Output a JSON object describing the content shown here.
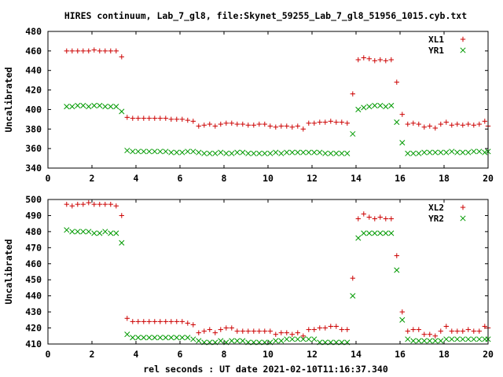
{
  "chart_data": {
    "title": "HIRES continuum, Lab_7_gl8, file:Skynet_59255_Lab_7_gl8_51956_1015.cyb.txt",
    "xlabel": "rel seconds : UT date 2021-02-10T11:16:37.340",
    "colors": {
      "XL": "#cc0000",
      "YR": "#009900"
    },
    "panels": [
      {
        "type": "scatter",
        "ylabel": "Uncalibrated",
        "xlim": [
          0,
          20
        ],
        "ylim": [
          340,
          480
        ],
        "xticks": [
          "0",
          "2",
          "4",
          "6",
          "8",
          "10",
          "12",
          "14",
          "16",
          "18",
          "20"
        ],
        "yticks": [
          "340",
          "360",
          "380",
          "400",
          "420",
          "440",
          "460",
          "480"
        ],
        "legend_position": "top-right",
        "x": [
          0.85,
          1.1,
          1.35,
          1.6,
          1.85,
          2.1,
          2.35,
          2.6,
          2.85,
          3.1,
          3.35,
          3.6,
          3.85,
          4.1,
          4.35,
          4.6,
          4.85,
          5.1,
          5.35,
          5.6,
          5.85,
          6.1,
          6.35,
          6.6,
          6.85,
          7.1,
          7.35,
          7.6,
          7.85,
          8.1,
          8.35,
          8.6,
          8.85,
          9.1,
          9.35,
          9.6,
          9.85,
          10.1,
          10.35,
          10.6,
          10.85,
          11.1,
          11.35,
          11.6,
          11.85,
          12.1,
          12.35,
          12.6,
          12.85,
          13.1,
          13.35,
          13.6,
          13.85,
          14.1,
          14.35,
          14.6,
          14.85,
          15.1,
          15.35,
          15.6,
          15.85,
          16.1,
          16.35,
          16.6,
          16.85,
          17.1,
          17.35,
          17.6,
          17.85,
          18.1,
          18.35,
          18.6,
          18.85,
          19.1,
          19.35,
          19.6,
          19.85,
          20.0
        ],
        "series": [
          {
            "name": "XL1",
            "marker": "plus",
            "values": [
              460,
              460,
              460,
              460,
              460,
              461,
              460,
              460,
              460,
              460,
              454,
              392,
              391,
              391,
              391,
              391,
              391,
              391,
              391,
              390,
              390,
              390,
              389,
              388,
              383,
              384,
              385,
              383,
              385,
              386,
              386,
              385,
              385,
              384,
              384,
              385,
              385,
              383,
              382,
              383,
              383,
              382,
              383,
              380,
              386,
              386,
              387,
              387,
              388,
              387,
              387,
              386,
              416,
              451,
              453,
              452,
              450,
              451,
              450,
              451,
              428,
              395,
              385,
              386,
              385,
              382,
              383,
              381,
              385,
              387,
              384,
              385,
              384,
              385,
              384,
              385,
              388,
              383
            ]
          },
          {
            "name": "YR1",
            "marker": "cross",
            "values": [
              403,
              403,
              404,
              404,
              403,
              404,
              404,
              403,
              403,
              403,
              398,
              358,
              357,
              357,
              357,
              357,
              357,
              357,
              357,
              356,
              356,
              356,
              357,
              357,
              356,
              355,
              355,
              355,
              356,
              355,
              355,
              356,
              356,
              355,
              355,
              355,
              355,
              355,
              356,
              355,
              356,
              356,
              356,
              356,
              356,
              356,
              356,
              355,
              355,
              355,
              355,
              355,
              375,
              400,
              402,
              403,
              404,
              404,
              403,
              404,
              387,
              366,
              355,
              355,
              355,
              356,
              356,
              356,
              356,
              356,
              357,
              356,
              356,
              356,
              357,
              357,
              356,
              357
            ]
          }
        ]
      },
      {
        "type": "scatter",
        "ylabel": "Uncalibrated",
        "xlim": [
          0,
          20
        ],
        "ylim": [
          410,
          500
        ],
        "xticks": [
          "0",
          "2",
          "4",
          "6",
          "8",
          "10",
          "12",
          "14",
          "16",
          "18",
          "20"
        ],
        "yticks": [
          "410",
          "420",
          "430",
          "440",
          "450",
          "460",
          "470",
          "480",
          "490",
          "500"
        ],
        "legend_position": "top-right",
        "x": [
          0.85,
          1.1,
          1.35,
          1.6,
          1.85,
          2.1,
          2.35,
          2.6,
          2.85,
          3.1,
          3.35,
          3.6,
          3.85,
          4.1,
          4.35,
          4.6,
          4.85,
          5.1,
          5.35,
          5.6,
          5.85,
          6.1,
          6.35,
          6.6,
          6.85,
          7.1,
          7.35,
          7.6,
          7.85,
          8.1,
          8.35,
          8.6,
          8.85,
          9.1,
          9.35,
          9.6,
          9.85,
          10.1,
          10.35,
          10.6,
          10.85,
          11.1,
          11.35,
          11.6,
          11.85,
          12.1,
          12.35,
          12.6,
          12.85,
          13.1,
          13.35,
          13.6,
          13.85,
          14.1,
          14.35,
          14.6,
          14.85,
          15.1,
          15.35,
          15.6,
          15.85,
          16.1,
          16.35,
          16.6,
          16.85,
          17.1,
          17.35,
          17.6,
          17.85,
          18.1,
          18.35,
          18.6,
          18.85,
          19.1,
          19.35,
          19.6,
          19.85,
          20.0
        ],
        "series": [
          {
            "name": "XL2",
            "marker": "plus",
            "values": [
              497,
              496,
              497,
              497,
              498,
              497,
              497,
              497,
              497,
              496,
              490,
              426,
              424,
              424,
              424,
              424,
              424,
              424,
              424,
              424,
              424,
              424,
              423,
              422,
              417,
              418,
              419,
              417,
              419,
              420,
              420,
              418,
              418,
              418,
              418,
              418,
              418,
              418,
              416,
              417,
              417,
              416,
              417,
              415,
              419,
              419,
              420,
              420,
              421,
              421,
              419,
              419,
              451,
              488,
              491,
              489,
              488,
              489,
              488,
              488,
              465,
              430,
              418,
              419,
              419,
              416,
              416,
              415,
              418,
              421,
              418,
              418,
              418,
              419,
              418,
              418,
              421,
              420
            ]
          },
          {
            "name": "YR2",
            "marker": "cross",
            "values": [
              481,
              480,
              480,
              480,
              480,
              479,
              479,
              480,
              479,
              479,
              473,
              416,
              414,
              414,
              414,
              414,
              414,
              414,
              414,
              414,
              414,
              414,
              414,
              413,
              412,
              411,
              411,
              411,
              412,
              411,
              412,
              412,
              412,
              411,
              411,
              411,
              411,
              411,
              412,
              412,
              413,
              413,
              413,
              413,
              413,
              413,
              411,
              411,
              411,
              411,
              411,
              411,
              440,
              476,
              479,
              479,
              479,
              479,
              479,
              479,
              456,
              425,
              413,
              412,
              412,
              412,
              412,
              412,
              412,
              413,
              413,
              413,
              413,
              413,
              413,
              413,
              413,
              413
            ]
          }
        ]
      }
    ]
  }
}
